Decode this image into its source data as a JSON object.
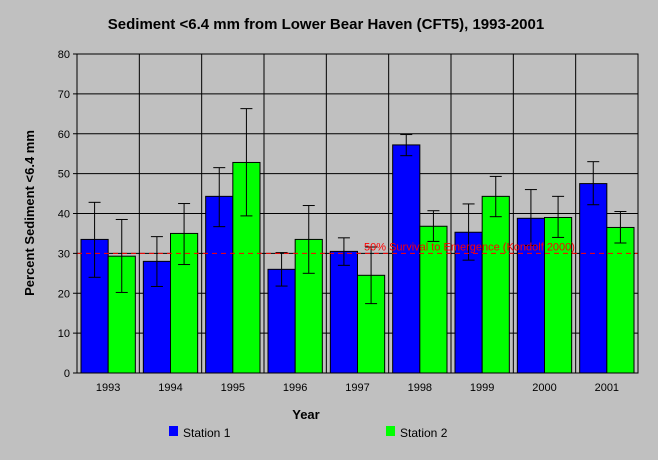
{
  "chart_data": {
    "type": "bar",
    "title": "Sediment <6.4 mm from Lower Bear Haven (CFT5), 1993-2001",
    "xlabel": "Year",
    "ylabel": "Percent Sediment <6.4 mm",
    "ylim": [
      0,
      80
    ],
    "yticks": [
      0,
      10,
      20,
      30,
      40,
      50,
      60,
      70,
      80
    ],
    "categories": [
      "1993",
      "1994",
      "1995",
      "1996",
      "1997",
      "1998",
      "1999",
      "2000",
      "2001"
    ],
    "series": [
      {
        "name": "Station 1",
        "color": "#0000ff",
        "values": [
          33.5,
          28,
          44.3,
          26,
          30.5,
          57.2,
          35.3,
          38.8,
          47.5
        ],
        "error_low": [
          24,
          21.7,
          36.7,
          21.8,
          27,
          54.5,
          28.3,
          32,
          42.2
        ],
        "error_high": [
          42.8,
          34.2,
          51.5,
          30.2,
          33.9,
          59.8,
          42.4,
          46,
          53
        ]
      },
      {
        "name": "Station 2",
        "color": "#00ff00",
        "values": [
          29.3,
          35,
          52.8,
          33.5,
          24.5,
          36.8,
          44.3,
          39,
          36.5
        ],
        "error_low": [
          20.2,
          27.2,
          39.4,
          25,
          17.4,
          33,
          39.2,
          34,
          32.6
        ],
        "error_high": [
          38.5,
          42.5,
          66.3,
          42,
          31.6,
          40.7,
          49.3,
          44.3,
          40.5
        ]
      }
    ],
    "reference_line": {
      "value": 30,
      "label": "50% Survival to Emergence (Kondolf 2000)",
      "color": "#ff0000"
    },
    "grid": true,
    "legend_position": "bottom"
  }
}
